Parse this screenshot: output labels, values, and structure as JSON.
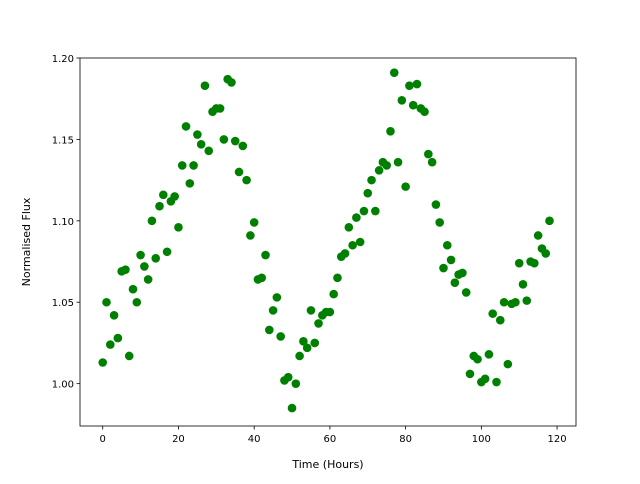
{
  "chart_data": {
    "type": "scatter",
    "x_label": "Time (Hours)",
    "y_label": "Normalised Flux",
    "color": "#008000",
    "x": [
      0,
      1,
      2,
      3,
      4,
      5,
      6,
      7,
      8,
      9,
      10,
      11,
      12,
      13,
      14,
      15,
      16,
      17,
      18,
      19,
      20,
      21,
      22,
      23,
      24,
      25,
      26,
      27,
      28,
      29,
      30,
      31,
      32,
      33,
      34,
      35,
      36,
      37,
      38,
      39,
      40,
      41,
      42,
      43,
      44,
      45,
      46,
      47,
      48,
      49,
      50,
      51,
      52,
      53,
      54,
      55,
      56,
      57,
      58,
      59,
      60,
      61,
      62,
      63,
      64,
      65,
      66,
      67,
      68,
      69,
      70,
      71,
      72,
      73,
      74,
      75,
      76,
      77,
      78,
      79,
      80,
      81,
      82,
      83,
      84,
      85,
      86,
      87,
      88,
      89,
      90,
      91,
      92,
      93,
      94,
      95,
      96,
      97,
      98,
      99,
      100,
      101,
      102,
      103,
      104,
      105,
      106,
      107,
      108,
      109,
      110,
      111,
      112,
      113,
      114,
      115,
      116,
      117,
      118
    ],
    "values": [
      1.013,
      1.05,
      1.024,
      1.042,
      1.028,
      1.069,
      1.07,
      1.017,
      1.058,
      1.05,
      1.079,
      1.072,
      1.064,
      1.1,
      1.077,
      1.109,
      1.116,
      1.081,
      1.112,
      1.115,
      1.096,
      1.134,
      1.158,
      1.123,
      1.134,
      1.153,
      1.147,
      1.183,
      1.143,
      1.167,
      1.169,
      1.169,
      1.15,
      1.187,
      1.185,
      1.149,
      1.13,
      1.146,
      1.125,
      1.091,
      1.099,
      1.064,
      1.065,
      1.079,
      1.033,
      1.045,
      1.053,
      1.029,
      1.002,
      1.004,
      0.985,
      1.0,
      1.017,
      1.026,
      1.022,
      1.045,
      1.025,
      1.037,
      1.042,
      1.044,
      1.044,
      1.055,
      1.065,
      1.078,
      1.08,
      1.096,
      1.085,
      1.102,
      1.087,
      1.106,
      1.117,
      1.125,
      1.106,
      1.131,
      1.136,
      1.134,
      1.155,
      1.191,
      1.136,
      1.174,
      1.121,
      1.183,
      1.171,
      1.184,
      1.169,
      1.167,
      1.141,
      1.136,
      1.11,
      1.099,
      1.071,
      1.085,
      1.076,
      1.062,
      1.067,
      1.068,
      1.056,
      1.006,
      1.017,
      1.015,
      1.001,
      1.003,
      1.018,
      1.043,
      1.001,
      1.039,
      1.05,
      1.012,
      1.049,
      1.05,
      1.074,
      1.061,
      1.051,
      1.075,
      1.074,
      1.091,
      1.083,
      1.08,
      1.1
    ],
    "xlim": [
      -6,
      125
    ],
    "ylim": [
      0.974,
      1.2
    ],
    "xticks": [
      0,
      20,
      40,
      60,
      80,
      100,
      120
    ],
    "yticks": [
      {
        "value": 1.0,
        "label": "1.00"
      },
      {
        "value": 1.05,
        "label": "1.05"
      },
      {
        "value": 1.1,
        "label": "1.10"
      },
      {
        "value": 1.15,
        "label": "1.15"
      },
      {
        "value": 1.2,
        "label": "1.20"
      }
    ]
  }
}
